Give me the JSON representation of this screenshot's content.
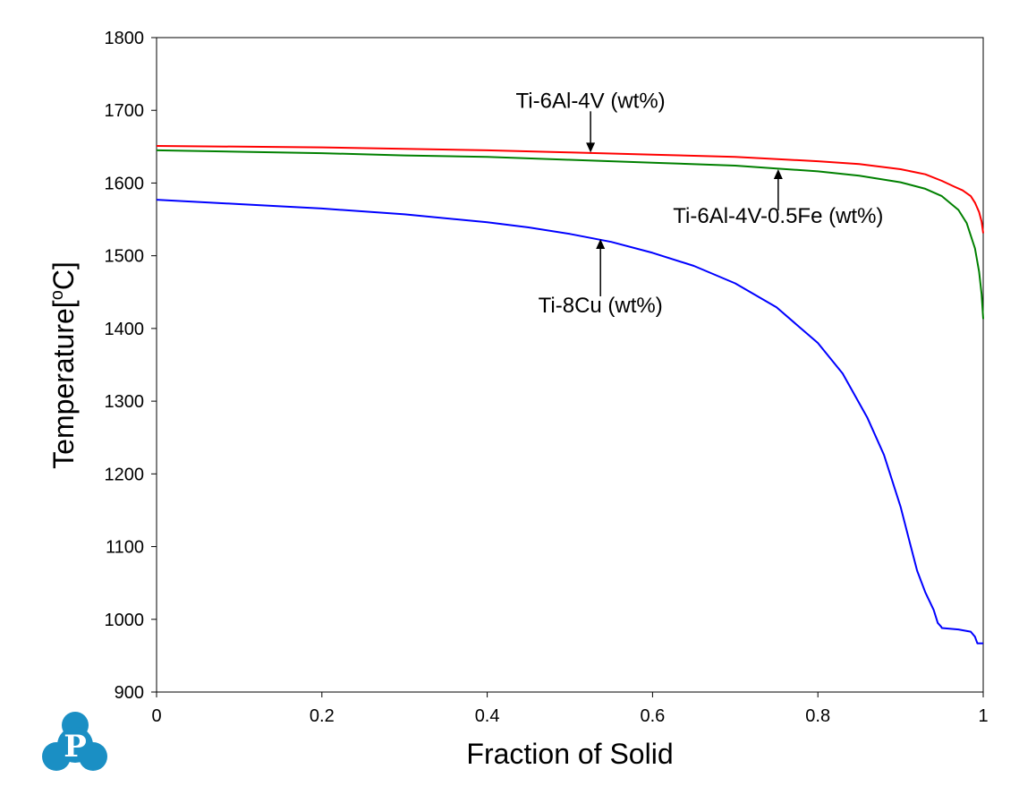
{
  "chart_data": {
    "type": "line",
    "xlabel": "Fraction of Solid",
    "ylabel": "Temperature[",
    "ylabel_sup": "o",
    "ylabel_unit": "C]",
    "xlim": [
      0,
      1
    ],
    "ylim": [
      900,
      1800
    ],
    "x_ticks": [
      0,
      0.2,
      0.4,
      0.6,
      0.8,
      1
    ],
    "x_tick_labels": [
      "0",
      "0.2",
      "0.4",
      "0.6",
      "0.8",
      "1"
    ],
    "y_ticks": [
      900,
      1000,
      1100,
      1200,
      1300,
      1400,
      1500,
      1600,
      1700,
      1800
    ],
    "y_tick_labels": [
      "900",
      "1000",
      "1100",
      "1200",
      "1300",
      "1400",
      "1500",
      "1600",
      "1700",
      "1800"
    ],
    "grid": false,
    "series": [
      {
        "name": "Ti-6Al-4V (wt%)",
        "color": "#ff0000",
        "x": [
          0,
          0.1,
          0.2,
          0.3,
          0.4,
          0.5,
          0.6,
          0.7,
          0.8,
          0.85,
          0.9,
          0.93,
          0.95,
          0.965,
          0.975,
          0.985,
          0.99,
          0.995,
          0.998,
          1.0
        ],
        "y": [
          1651,
          1650,
          1649,
          1647,
          1645,
          1642,
          1639,
          1636,
          1630,
          1626,
          1619,
          1612,
          1603,
          1595,
          1590,
          1582,
          1573,
          1560,
          1547,
          1531
        ]
      },
      {
        "name": "Ti-6Al-4V-0.5Fe (wt%)",
        "color": "#008000",
        "x": [
          0,
          0.1,
          0.2,
          0.3,
          0.4,
          0.5,
          0.6,
          0.7,
          0.75,
          0.8,
          0.85,
          0.9,
          0.93,
          0.95,
          0.97,
          0.98,
          0.99,
          0.995,
          0.998,
          1.0
        ],
        "y": [
          1645,
          1643,
          1641,
          1638,
          1636,
          1632,
          1628,
          1624,
          1620,
          1616,
          1610,
          1601,
          1592,
          1582,
          1563,
          1545,
          1510,
          1478,
          1447,
          1413
        ]
      },
      {
        "name": "Ti-8Cu (wt%)",
        "color": "#0000ff",
        "x": [
          0,
          0.1,
          0.2,
          0.3,
          0.4,
          0.45,
          0.5,
          0.55,
          0.6,
          0.65,
          0.7,
          0.75,
          0.8,
          0.83,
          0.86,
          0.88,
          0.9,
          0.91,
          0.92,
          0.93,
          0.94,
          0.945,
          0.949,
          0.95,
          0.97,
          0.985,
          0.99,
          0.993,
          1.0
        ],
        "y": [
          1577,
          1571,
          1565,
          1557,
          1546,
          1539,
          1530,
          1519,
          1504,
          1486,
          1462,
          1429,
          1380,
          1338,
          1277,
          1226,
          1155,
          1111,
          1067,
          1037,
          1013,
          995,
          990,
          988,
          986,
          983,
          976,
          967,
          967
        ]
      }
    ],
    "annotations": [
      {
        "text": "Ti-6Al-4V (wt%)",
        "series": 0,
        "x": 0.525,
        "y": 1642
      },
      {
        "text": "Ti-6Al-4V-0.5Fe (wt%)",
        "series": 1,
        "x": 0.752,
        "y": 1619
      },
      {
        "text": "Ti-8Cu (wt%)",
        "series": 2,
        "x": 0.537,
        "y": 1523
      }
    ]
  },
  "logo": {
    "letter": "P",
    "color": "#1a8fc4"
  }
}
